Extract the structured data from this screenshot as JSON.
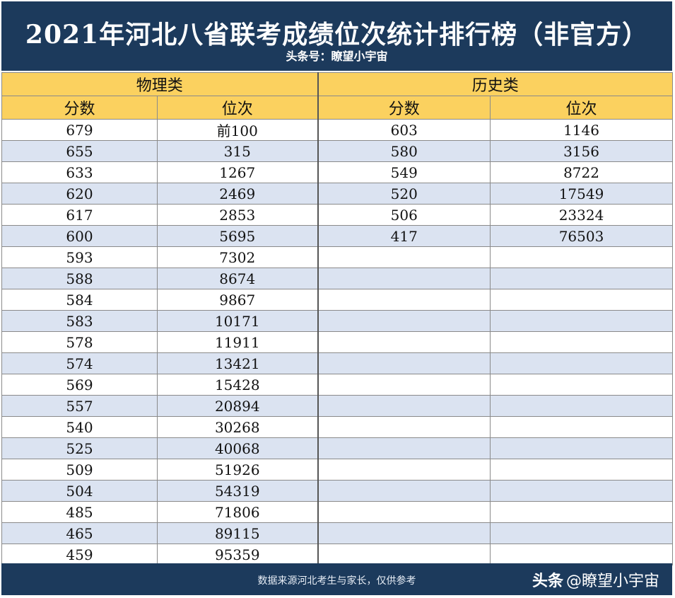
{
  "banner": {
    "title": "2021年河北八省联考成绩位次统计排行榜（非官方）",
    "subtitle": "头条号：瞭望小宇宙"
  },
  "groups": {
    "physics": "物理类",
    "history": "历史类"
  },
  "columns": {
    "score": "分数",
    "rank": "位次"
  },
  "physics_rows": [
    [
      "679",
      "前100"
    ],
    [
      "655",
      "315"
    ],
    [
      "633",
      "1267"
    ],
    [
      "620",
      "2469"
    ],
    [
      "617",
      "2853"
    ],
    [
      "600",
      "5695"
    ],
    [
      "593",
      "7302"
    ],
    [
      "588",
      "8674"
    ],
    [
      "584",
      "9867"
    ],
    [
      "583",
      "10171"
    ],
    [
      "578",
      "11911"
    ],
    [
      "574",
      "13421"
    ],
    [
      "569",
      "15428"
    ],
    [
      "557",
      "20894"
    ],
    [
      "540",
      "30268"
    ],
    [
      "525",
      "40068"
    ],
    [
      "509",
      "51926"
    ],
    [
      "504",
      "54319"
    ],
    [
      "485",
      "71806"
    ],
    [
      "465",
      "89115"
    ],
    [
      "459",
      "95359"
    ]
  ],
  "history_rows": [
    [
      "603",
      "1146"
    ],
    [
      "580",
      "3156"
    ],
    [
      "549",
      "8722"
    ],
    [
      "520",
      "17549"
    ],
    [
      "506",
      "23324"
    ],
    [
      "417",
      "76503"
    ]
  ],
  "footer": {
    "source": "数据来源河北考生与家长，仅供参考",
    "watermark_brand": "头条",
    "watermark_handle": "@瞭望小宇宙"
  },
  "colors": {
    "banner": "#1c3a5c",
    "header": "#fbd15f",
    "stripe": "#dbe3f1"
  }
}
